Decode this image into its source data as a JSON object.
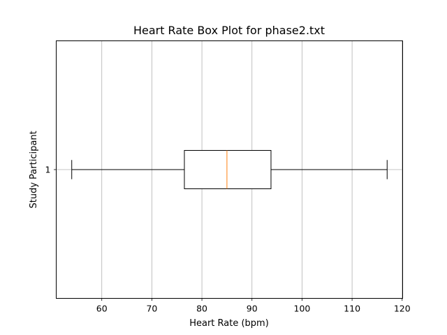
{
  "chart_data": {
    "type": "box",
    "orientation": "horizontal",
    "title": "Heart Rate Box Plot for phase2.txt",
    "xlabel": "Heart Rate (bpm)",
    "ylabel": "Study Participant",
    "xlim": [
      50.9,
      120.1
    ],
    "xticks": [
      60,
      70,
      80,
      90,
      100,
      110,
      120
    ],
    "xtick_labels": [
      "60",
      "70",
      "80",
      "90",
      "100",
      "110",
      "120"
    ],
    "ytick_labels": [
      "1"
    ],
    "grid": "x",
    "boxes": [
      {
        "position": 1,
        "whisker_low": 54.0,
        "q1": 76.5,
        "median": 85.0,
        "q3": 93.8,
        "whisker_high": 117.0
      }
    ],
    "colors": {
      "box": "#000000",
      "median": "#ff7f0e",
      "grid": "#b0b0b0"
    }
  }
}
